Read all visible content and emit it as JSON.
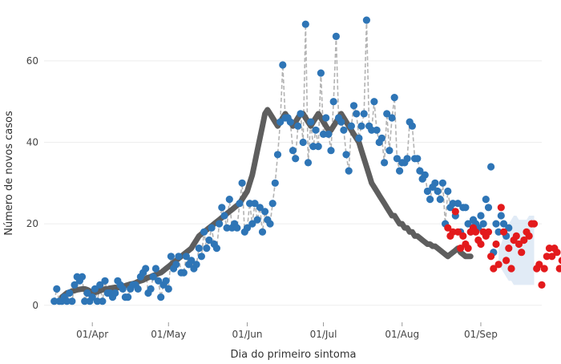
{
  "chart_data": {
    "type": "scatter",
    "xlabel": "Dia do primeiro sintoma",
    "ylabel": "Número de novos casos",
    "xlim": [
      "2020-03-13",
      "2020-09-25"
    ],
    "ylim": [
      -3,
      71
    ],
    "x_ticks": [
      {
        "date": "2020-04-01",
        "label": "01/Apr"
      },
      {
        "date": "2020-05-01",
        "label": "01/May"
      },
      {
        "date": "2020-06-01",
        "label": "01/Jun"
      },
      {
        "date": "2020-07-01",
        "label": "01/Jul"
      },
      {
        "date": "2020-08-01",
        "label": "01/Aug"
      },
      {
        "date": "2020-09-01",
        "label": "01/Sep"
      }
    ],
    "y_ticks": [
      0,
      20,
      40,
      60
    ],
    "grid": "horizontal",
    "colors": {
      "observed": "#2e75b6",
      "nowcast": "#e31a1c",
      "moving_average": "#555555",
      "daily_connector": "#b3b3b3",
      "interval_band": "#dce8f5"
    },
    "series": [
      {
        "role": "observed",
        "start": "2020-03-17",
        "values": [
          1,
          4,
          1,
          1,
          2,
          1,
          3,
          1,
          5,
          7,
          6,
          7,
          1,
          3,
          1,
          2,
          4,
          1,
          5,
          1,
          6,
          3,
          3,
          2,
          3,
          6,
          5,
          4,
          2,
          2,
          4,
          5,
          5,
          4,
          7,
          8,
          9,
          3,
          4,
          7,
          9,
          6,
          2,
          5,
          6,
          4,
          12,
          9,
          10,
          12,
          8,
          8,
          12,
          10,
          11,
          9,
          10,
          14,
          12,
          18,
          14,
          16,
          19,
          15,
          14,
          20,
          24,
          22,
          19,
          26,
          19,
          20,
          19,
          25,
          30,
          18,
          19,
          25,
          20,
          25,
          21,
          24,
          18,
          23,
          21,
          20,
          25,
          30,
          37,
          45,
          59,
          46,
          46,
          45,
          38,
          36,
          44,
          47,
          40,
          69,
          35,
          45,
          39,
          43,
          39,
          57,
          42,
          46,
          42,
          38,
          50,
          66,
          46,
          45,
          43,
          37,
          33,
          44,
          49,
          47,
          41,
          44,
          47,
          70,
          44,
          43,
          50,
          43,
          40,
          41,
          35,
          47,
          38,
          46,
          51,
          36,
          33,
          35,
          35,
          36,
          45,
          44,
          36,
          36,
          33,
          31,
          32,
          28,
          26,
          29,
          30,
          28,
          26,
          30,
          20,
          28,
          24,
          25,
          22,
          25,
          18,
          24,
          24,
          20,
          18,
          21,
          20,
          19,
          22,
          20,
          26,
          24,
          34,
          13,
          20,
          18,
          22,
          20,
          17,
          19
        ],
        "connector_until": "2020-08-20"
      },
      {
        "role": "nowcast",
        "start": "2020-08-19",
        "values": [
          19,
          17,
          18,
          23,
          18,
          14,
          17,
          15,
          14,
          18,
          19,
          18,
          16,
          15,
          18,
          17,
          18,
          12,
          9,
          15,
          10,
          24,
          18,
          11,
          14,
          9,
          16,
          17,
          15,
          13,
          16,
          18,
          17,
          20,
          20,
          9,
          10,
          5,
          9,
          12,
          14,
          12,
          14,
          13,
          9,
          11,
          12,
          14,
          20,
          12
        ]
      },
      {
        "role": "moving_average",
        "start": "2020-03-20",
        "values": [
          2,
          2.5,
          3,
          3.2,
          3.5,
          3.6,
          3.8,
          3.9,
          4,
          4,
          3.8,
          3.5,
          3.2,
          3.2,
          3.3,
          3.6,
          3.8,
          4,
          4,
          4.2,
          4.3,
          4.4,
          4.3,
          4.5,
          4.7,
          4.8,
          5,
          5.2,
          5.3,
          5.5,
          5.8,
          6,
          6.2,
          6.5,
          6.8,
          7,
          7.3,
          7.5,
          7.8,
          8,
          8.5,
          9,
          9.5,
          10,
          10.5,
          11,
          11.5,
          12,
          12.5,
          13,
          13.5,
          14,
          15,
          16,
          17,
          17.5,
          18,
          18.5,
          19,
          19.5,
          20,
          20.5,
          21,
          21.5,
          22,
          22.5,
          23,
          23.5,
          24,
          24.5,
          25,
          26,
          27,
          28,
          30,
          32,
          35,
          38,
          41,
          44,
          47,
          48,
          47,
          46,
          45,
          44,
          45,
          46,
          47,
          46,
          45,
          44,
          45,
          46,
          47,
          47,
          46,
          45,
          44,
          45,
          46,
          47,
          46,
          45,
          44,
          43,
          43,
          44,
          45,
          46,
          47,
          46,
          45,
          44,
          43,
          42,
          41,
          40,
          38,
          36,
          34,
          32,
          30,
          29,
          28,
          27,
          26,
          25,
          24,
          23,
          22,
          22,
          21,
          20,
          20,
          19,
          19,
          18,
          18,
          17,
          17,
          16.5,
          16,
          15.5,
          15,
          15,
          14.5,
          14.5,
          14,
          13.5,
          13,
          12.5,
          12,
          12.5,
          13,
          13.5,
          14,
          13,
          12.5,
          12,
          12,
          12
        ]
      },
      {
        "role": "interval_band",
        "start": "2020-09-08",
        "lower": [
          11,
          9,
          8,
          7,
          6,
          6,
          5,
          5,
          5,
          5,
          5,
          5,
          5,
          5,
          5
        ],
        "upper": [
          14,
          15,
          17,
          19,
          20,
          21,
          22,
          22,
          21,
          21,
          21,
          21,
          22,
          22,
          22
        ]
      }
    ]
  }
}
